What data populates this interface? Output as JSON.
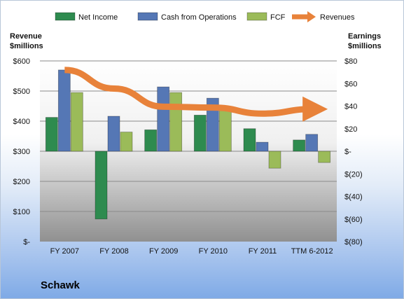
{
  "chart_data": {
    "type": "bar",
    "categories": [
      "FY 2007",
      "FY 2008",
      "FY 2009",
      "FY 2010",
      "FY 2011",
      "TTM 6-2012"
    ],
    "series": [
      {
        "name": "Net Income",
        "axis": "right",
        "color": "#2e8b4f",
        "values": [
          30,
          -60,
          19,
          32,
          20,
          10
        ]
      },
      {
        "name": "Cash from Operations",
        "axis": "right",
        "color": "#5577b5",
        "values": [
          72,
          31,
          57,
          47,
          8,
          15
        ]
      },
      {
        "name": "FCF",
        "axis": "right",
        "color": "#9bbb59",
        "values": [
          52,
          17,
          52,
          37,
          -15,
          -10
        ]
      },
      {
        "name": "Revenues",
        "axis": "left",
        "type": "line",
        "color": "#e8823a",
        "values": [
          570,
          508,
          448,
          445,
          425,
          440
        ]
      }
    ],
    "left_axis": {
      "label_line1": "Revenue",
      "label_line2": "$millions",
      "ylim": [
        0,
        600
      ],
      "ticks": [
        0,
        100,
        200,
        300,
        400,
        500,
        600
      ],
      "tick_labels": [
        "$-",
        "$100",
        "$200",
        "$300",
        "$400",
        "$500",
        "$600"
      ]
    },
    "right_axis": {
      "label_line1": "Earnings",
      "label_line2": "$millions",
      "ylim": [
        -80,
        80
      ],
      "ticks": [
        -80,
        -60,
        -40,
        -20,
        0,
        20,
        40,
        60,
        80
      ],
      "tick_labels": [
        "$(80)",
        "$(60)",
        "$(40)",
        "$(20)",
        "$-",
        "$20",
        "$40",
        "$60",
        "$80"
      ]
    },
    "legend": {
      "position": "top",
      "items": [
        "Net Income",
        "Cash from Operations",
        "FCF",
        "Revenues"
      ]
    },
    "grid": true
  },
  "company": "Schawk"
}
